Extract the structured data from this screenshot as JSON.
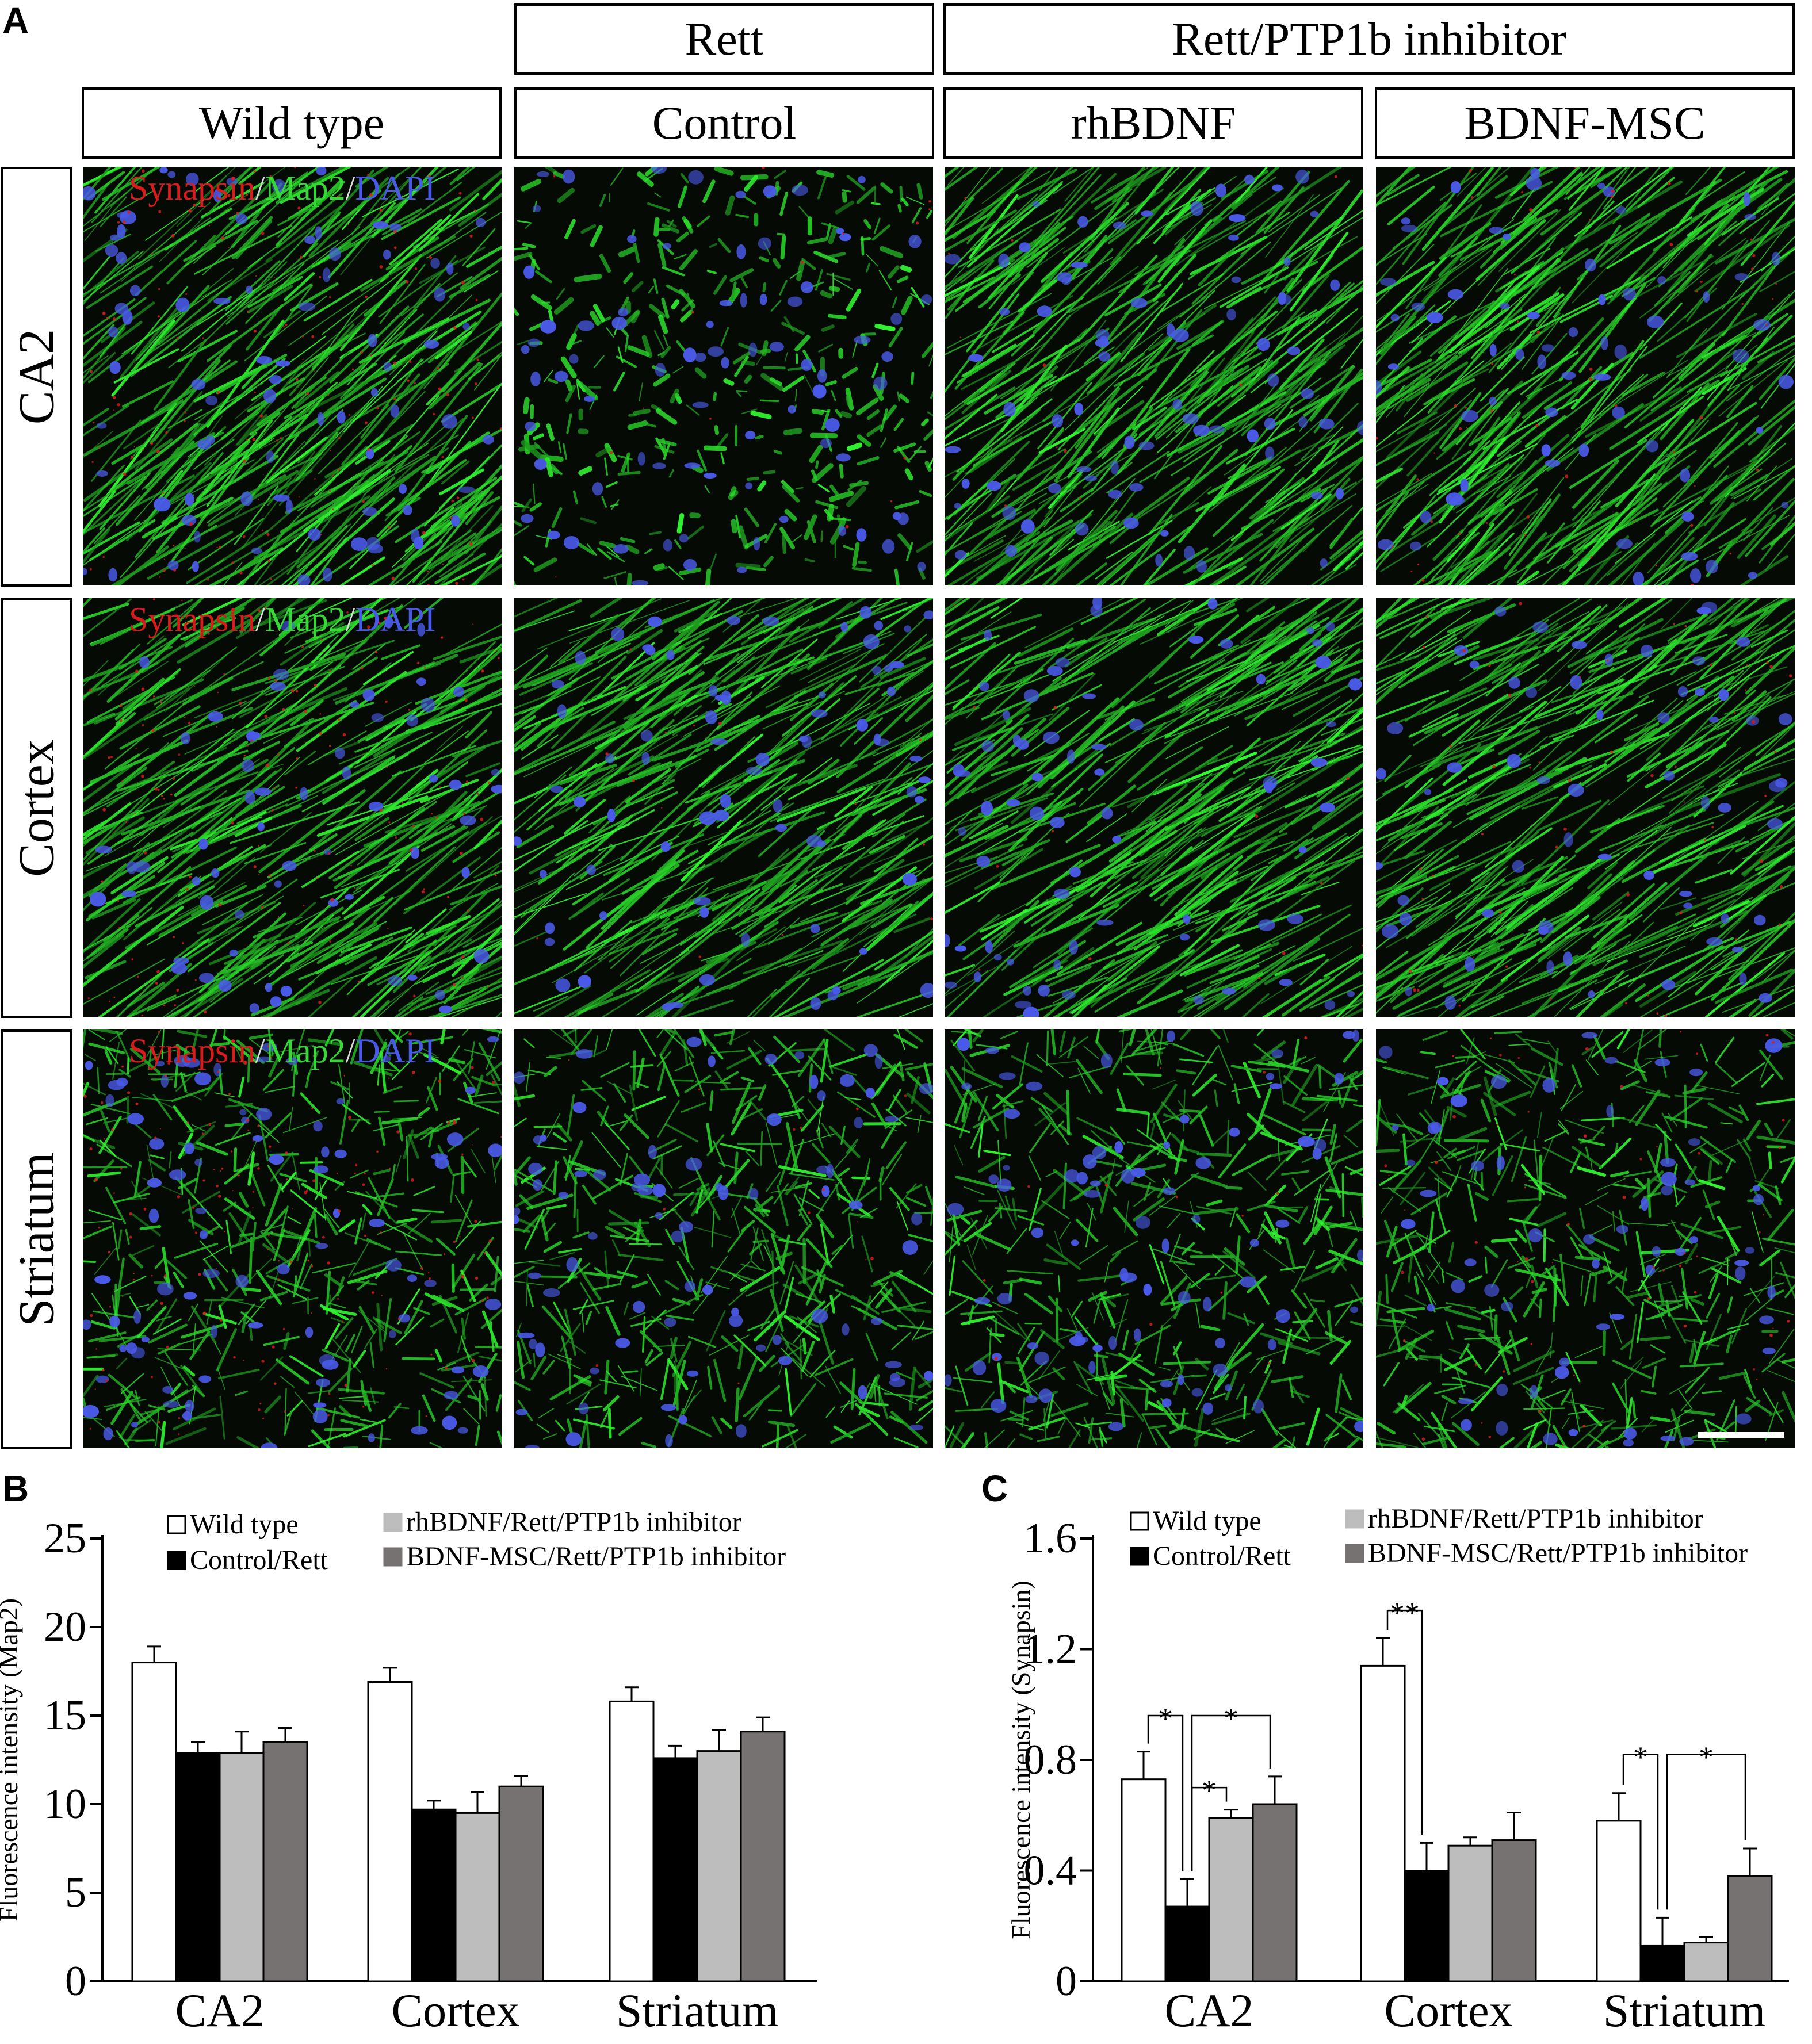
{
  "panel_letters": {
    "a": "A",
    "b": "B",
    "c": "C"
  },
  "column_groups": {
    "rett": "Rett",
    "rett_ptp1b": "Rett/PTP1b inhibitor"
  },
  "columns": [
    "Wild type",
    "Control",
    "rhBDNF",
    "BDNF-MSC"
  ],
  "rows": [
    "CA2",
    "Cortex",
    "Striatum"
  ],
  "stain_label": {
    "synapsin": "Synapsin",
    "sep1": "/",
    "map2": "Map2",
    "sep2": "/",
    "dapi": "DAPI"
  },
  "colors": {
    "wild_type": "#ffffff",
    "control": "#000000",
    "rhbdnf": "#bdbdbd",
    "bdnf_msc": "#777272",
    "synapsin": "#d81c1c",
    "map2": "#38d838",
    "dapi": "#4a5ae8"
  },
  "chart_data": [
    {
      "panel": "B",
      "type": "bar",
      "ylabel": "Fluorescence intensity (Map2)",
      "ylim": [
        0,
        25
      ],
      "yticks": [
        "0",
        "5",
        "10",
        "15",
        "20",
        "25"
      ],
      "categories": [
        "CA2",
        "Cortex",
        "Striatum"
      ],
      "legend": [
        "Wild type",
        "Control/Rett",
        "rhBDNF/Rett/PTP1b inhibitor",
        "BDNF-MSC/Rett/PTP1b inhibitor"
      ],
      "legend_placement": "top",
      "series": [
        {
          "name": "Wild type",
          "values": [
            18.0,
            16.9,
            15.8
          ],
          "errors": [
            0.9,
            0.8,
            0.8
          ]
        },
        {
          "name": "Control/Rett",
          "values": [
            12.9,
            9.7,
            12.6
          ],
          "errors": [
            0.6,
            0.5,
            0.7
          ]
        },
        {
          "name": "rhBDNF/Rett/PTP1b inhibitor",
          "values": [
            12.9,
            9.5,
            13.0
          ],
          "errors": [
            1.2,
            1.2,
            1.2
          ]
        },
        {
          "name": "BDNF-MSC/Rett/PTP1b inhibitor",
          "values": [
            13.5,
            11.0,
            14.1
          ],
          "errors": [
            0.8,
            0.6,
            0.8
          ]
        }
      ],
      "significance": []
    },
    {
      "panel": "C",
      "type": "bar",
      "ylabel": "Fluorescence intensity (Synapsin)",
      "ylim": [
        0,
        1.6
      ],
      "yticks": [
        "0",
        "0.4",
        "0.8",
        "1.2",
        "1.6"
      ],
      "categories": [
        "CA2",
        "Cortex",
        "Striatum"
      ],
      "legend": [
        "Wild type",
        "Control/Rett",
        "rhBDNF/Rett/PTP1b inhibitor",
        "BDNF-MSC/Rett/PTP1b inhibitor"
      ],
      "legend_placement": "top",
      "series": [
        {
          "name": "Wild type",
          "values": [
            0.73,
            1.14,
            0.58
          ],
          "errors": [
            0.1,
            0.1,
            0.1
          ]
        },
        {
          "name": "Control/Rett",
          "values": [
            0.27,
            0.4,
            0.13
          ],
          "errors": [
            0.1,
            0.1,
            0.1
          ]
        },
        {
          "name": "rhBDNF/Rett/PTP1b inhibitor",
          "values": [
            0.59,
            0.49,
            0.14
          ],
          "errors": [
            0.03,
            0.03,
            0.02
          ]
        },
        {
          "name": "BDNF-MSC/Rett/PTP1b inhibitor",
          "values": [
            0.64,
            0.51,
            0.38
          ],
          "errors": [
            0.1,
            0.1,
            0.1
          ]
        }
      ],
      "significance": [
        {
          "category": 0,
          "from": 0,
          "to": 1,
          "label": "*",
          "y": 0.96
        },
        {
          "category": 0,
          "from": 1,
          "to": 3,
          "label": "*",
          "y": 0.96
        },
        {
          "category": 0,
          "from": 1,
          "to": 2,
          "label": "*",
          "y": 0.7
        },
        {
          "category": 1,
          "from": 0,
          "to": 1,
          "label": "**",
          "y": 1.34
        },
        {
          "category": 2,
          "from": 0,
          "to": 1,
          "label": "*",
          "y": 0.82
        },
        {
          "category": 2,
          "from": 1,
          "to": 3,
          "label": "*",
          "y": 0.82
        }
      ]
    }
  ]
}
